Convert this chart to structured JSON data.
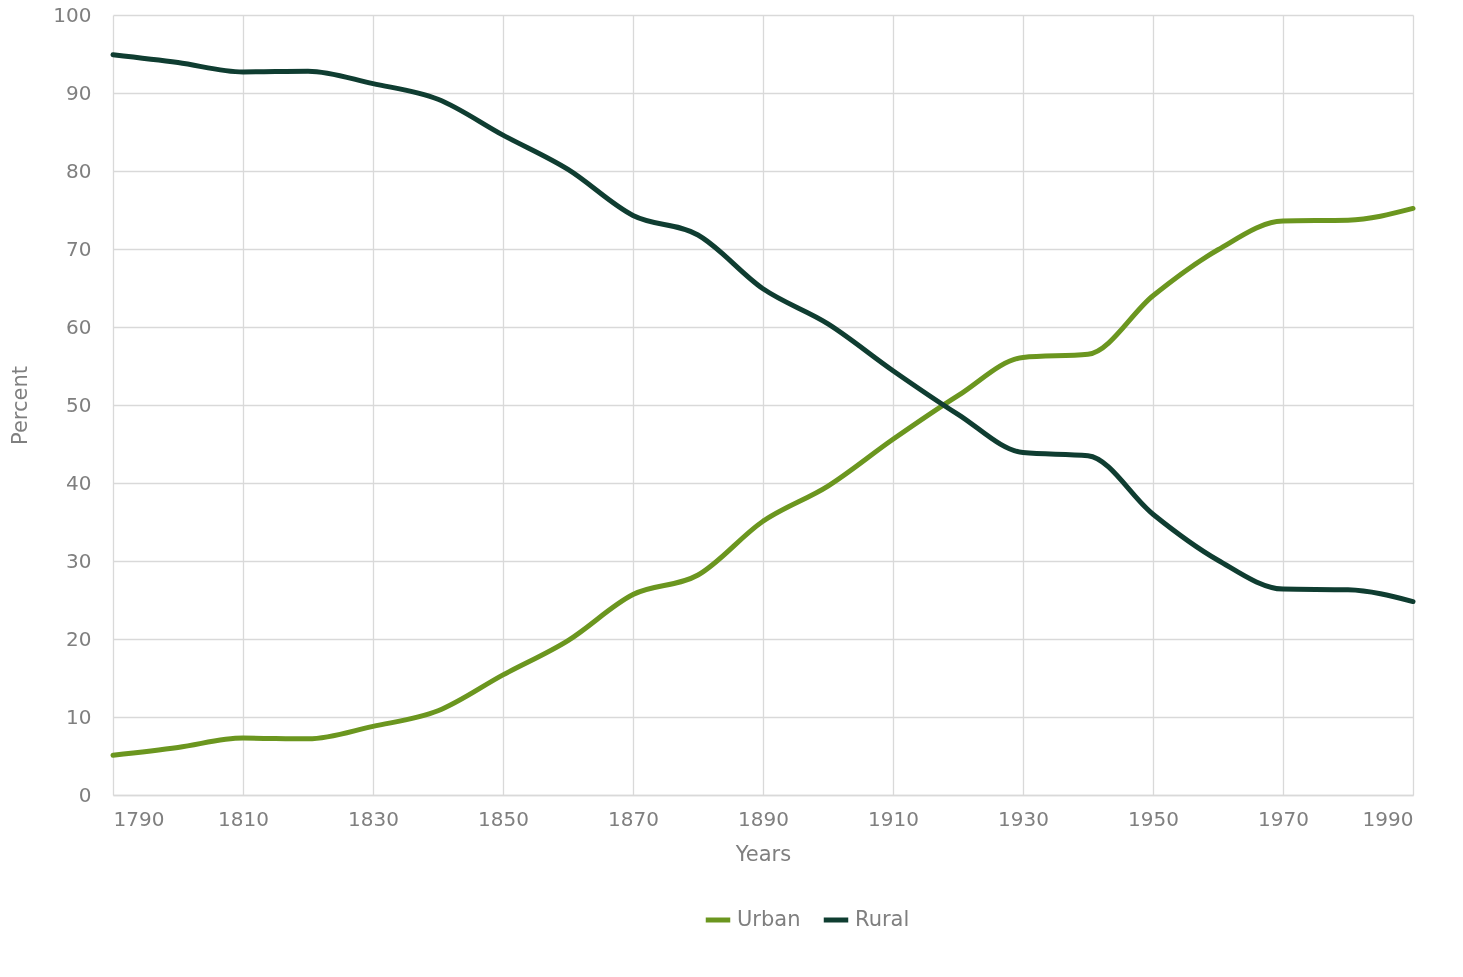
{
  "chart_data": {
    "type": "line",
    "xlabel": "Years",
    "ylabel": "Percent",
    "x": [
      1790,
      1800,
      1810,
      1820,
      1830,
      1840,
      1850,
      1860,
      1870,
      1880,
      1890,
      1900,
      1910,
      1920,
      1930,
      1940,
      1950,
      1960,
      1970,
      1980,
      1990
    ],
    "series": [
      {
        "name": "Urban",
        "color": "#6b961f",
        "values": [
          5.1,
          6.1,
          7.3,
          7.2,
          8.8,
          10.8,
          15.4,
          19.8,
          25.7,
          28.2,
          35.1,
          39.6,
          45.6,
          51.2,
          56.1,
          56.5,
          64.0,
          69.9,
          73.6,
          73.7,
          75.2
        ]
      },
      {
        "name": "Rural",
        "color": "#0f3d31",
        "values": [
          94.9,
          93.9,
          92.7,
          92.8,
          91.2,
          89.2,
          84.6,
          80.2,
          74.3,
          71.8,
          64.9,
          60.4,
          54.4,
          48.8,
          43.9,
          43.5,
          36.0,
          30.1,
          26.4,
          26.3,
          24.8
        ]
      }
    ],
    "xlim": [
      1790,
      1990
    ],
    "xticks": [
      1790,
      1810,
      1830,
      1850,
      1870,
      1890,
      1910,
      1930,
      1950,
      1970,
      1990
    ],
    "ylim": [
      0,
      100
    ],
    "yticks": [
      0,
      10,
      20,
      30,
      40,
      50,
      60,
      70,
      80,
      90,
      100
    ],
    "grid": true,
    "legend": "bottom",
    "line_style": "solid",
    "marker": "none"
  }
}
